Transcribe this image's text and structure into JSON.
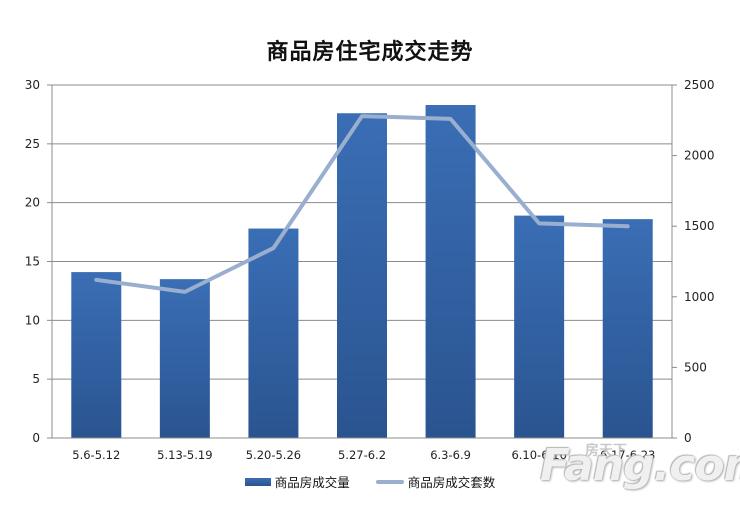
{
  "chart_data": {
    "type": "bar+line",
    "title": "商品房住宅成交走势",
    "categories": [
      "5.6-5.12",
      "5.13-5.19",
      "5.20-5.26",
      "5.27-6.2",
      "6.3-6.9",
      "6.10-6.16",
      "6.17-6.23"
    ],
    "series": [
      {
        "name": "商品房成交量",
        "type": "bar",
        "axis": "left",
        "color": "#2f5f9f",
        "values": [
          14.1,
          13.5,
          17.8,
          27.6,
          28.3,
          18.9,
          18.6
        ]
      },
      {
        "name": "商品房成交套数",
        "type": "line",
        "axis": "right",
        "color": "#9aaed0",
        "values": [
          1120,
          1035,
          1345,
          2280,
          2260,
          1520,
          1500
        ]
      }
    ],
    "y_left": {
      "ylim": [
        0,
        30
      ],
      "ticks": [
        0,
        5,
        10,
        15,
        20,
        25,
        30
      ]
    },
    "y_right": {
      "ylim": [
        0,
        2500
      ],
      "ticks": [
        0,
        500,
        1000,
        1500,
        2000,
        2500
      ]
    },
    "xlabel": "",
    "ylabel": "",
    "grid": true,
    "legend_position": "bottom"
  },
  "legend": {
    "bar_label": "商品房成交量",
    "line_label": "商品房成交套数"
  },
  "watermark": {
    "text": "Fang.com",
    "cn": "房天下"
  }
}
